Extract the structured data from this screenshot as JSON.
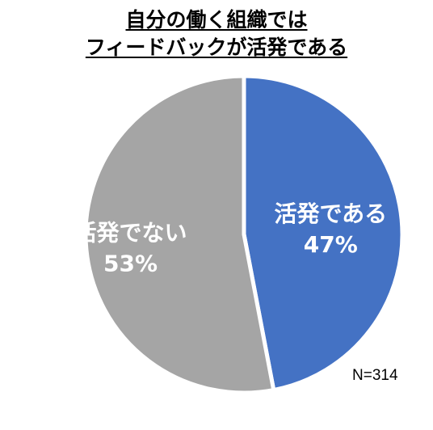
{
  "chart_data": {
    "type": "pie",
    "title_lines": [
      "自分の働く組織では",
      "フィードバックが活発である"
    ],
    "slices": [
      {
        "label": "活発である",
        "value": 47,
        "value_label": "47%",
        "color": "#4472C4"
      },
      {
        "label": "活発でない",
        "value": 53,
        "value_label": "53%",
        "color": "#A5A5A5"
      }
    ],
    "start_angle_deg": 0,
    "direction": "clockwise",
    "note": "N=314"
  }
}
